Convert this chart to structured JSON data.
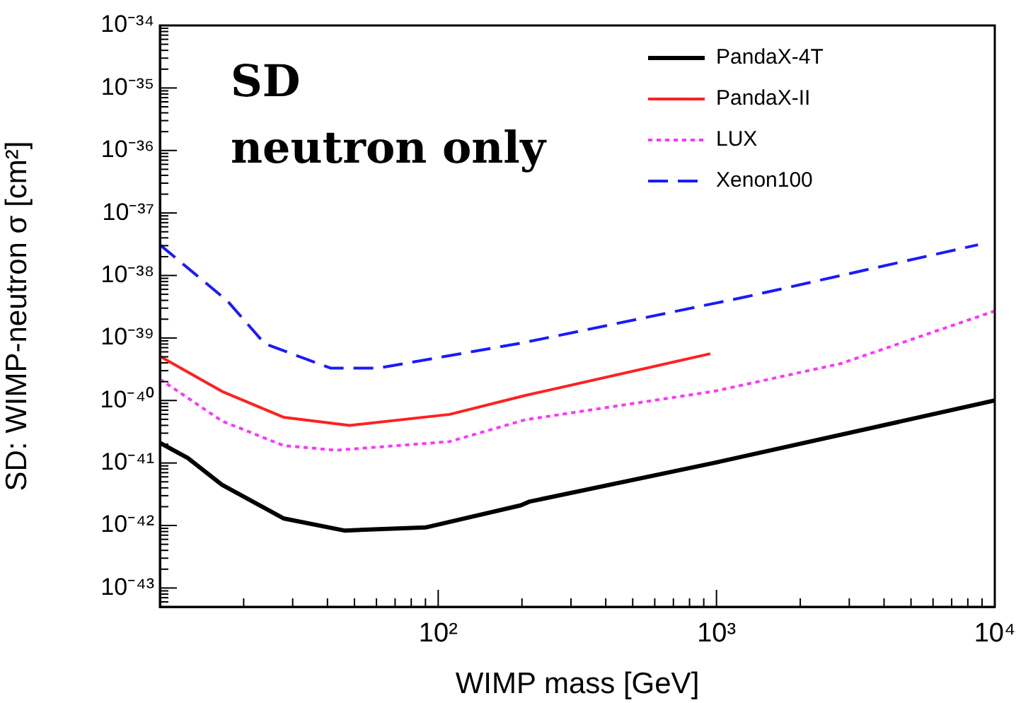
{
  "chart_data": {
    "type": "line",
    "xlabel": "WIMP mass [GeV]",
    "ylabel": "SD: WIMP-neutron σ [cm²]",
    "log": "xy",
    "grid": false,
    "legend": "top right",
    "marker": "none",
    "xlim": [
      10,
      10000
    ],
    "xticks": [
      {
        "value": 100,
        "label": "10²"
      },
      {
        "value": 1000,
        "label": "10³"
      },
      {
        "value": 10000,
        "label": "10⁴"
      }
    ],
    "ylim": [
      5e-44,
      1e-34
    ],
    "yticks": [
      {
        "value": 1e-43,
        "label": "10⁻⁴³"
      },
      {
        "value": 1e-42,
        "label": "10⁻⁴²"
      },
      {
        "value": 1e-41,
        "label": "10⁻⁴¹"
      },
      {
        "value": 1e-40,
        "label": "10⁻⁴⁰"
      },
      {
        "value": 1e-39,
        "label": "10⁻³⁹"
      },
      {
        "value": 1e-38,
        "label": "10⁻³⁸"
      },
      {
        "value": 1e-37,
        "label": "10⁻³⁷"
      },
      {
        "value": 1e-36,
        "label": "10⁻³⁶"
      },
      {
        "value": 1e-35,
        "label": "10⁻³⁵"
      },
      {
        "value": 1e-34,
        "label": "10⁻³⁴"
      }
    ],
    "annotations": [
      "SD",
      "neutron only"
    ],
    "series": [
      {
        "name": "PandaX-4T",
        "color": "#000000",
        "line_style": "solid",
        "x": [
          10,
          12.6,
          16.7,
          27.8,
          46,
          90,
          198,
          212,
          977,
          10000
        ],
        "values": [
          2.1e-41,
          1.2e-41,
          4.5e-42,
          1.3e-42,
          8.3e-43,
          9.3e-43,
          2.1e-42,
          2.4e-42,
          1e-41,
          1e-40
        ]
      },
      {
        "name": "PandaX-II",
        "color": "#ff2020",
        "line_style": "solid",
        "x": [
          10,
          16.7,
          27.8,
          48,
          110,
          205,
          950
        ],
        "values": [
          5.1e-40,
          1.4e-40,
          5.4e-41,
          4e-41,
          6e-41,
          1.2e-40,
          5.6e-40
        ]
      },
      {
        "name": "LUX",
        "color": "#ff33ff",
        "line_style": "dotted",
        "x": [
          10,
          16.7,
          27.8,
          43,
          110,
          205,
          977,
          2800,
          10000
        ],
        "values": [
          2.2e-40,
          4.7e-41,
          1.9e-41,
          1.6e-41,
          2.2e-41,
          4.9e-41,
          1.4e-40,
          3.9e-40,
          2.7e-39
        ]
      },
      {
        "name": "Xenon100",
        "color": "#1a1aff",
        "line_style": "dashed",
        "x": [
          10,
          17.5,
          23.8,
          41,
          61,
          205,
          1290,
          8700
        ],
        "values": [
          3.1e-38,
          3.9e-39,
          8.1e-40,
          3.3e-40,
          3.3e-40,
          8.5e-40,
          4.6e-39,
          3.1e-38
        ]
      }
    ]
  }
}
